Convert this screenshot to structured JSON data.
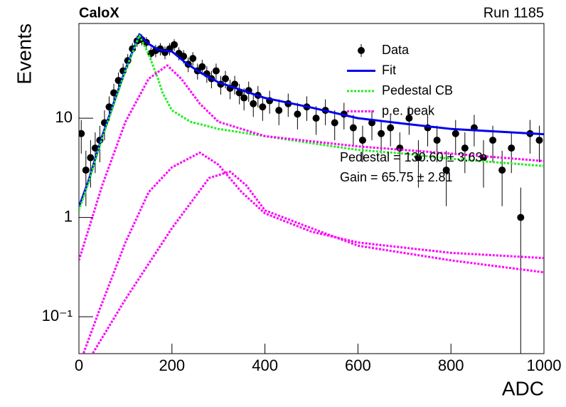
{
  "chart_data": {
    "type": "scatter",
    "title": "CaloX",
    "subtitle": "Run 1185",
    "xlabel": "ADC",
    "ylabel": "Events",
    "xlim": [
      0,
      1000
    ],
    "xticks": [
      0,
      200,
      400,
      600,
      800,
      1000
    ],
    "ylim": [
      0.0425,
      90
    ],
    "yticks": [
      {
        "value": 0.1,
        "label": "10⁻¹"
      },
      1,
      10
    ],
    "log_y": true,
    "legend_position": "upper right",
    "annotations": [
      "Pedestal = 130.60 ± 3.63",
      "Gain = 65.75 ± 2.81"
    ],
    "series": [
      {
        "name": "Data",
        "type": "errorbar",
        "color": "#000000",
        "x": [
          5,
          15,
          25,
          35,
          45,
          55,
          65,
          75,
          85,
          95,
          105,
          115,
          125,
          135,
          145,
          155,
          165,
          175,
          185,
          195,
          205,
          215,
          225,
          235,
          245,
          255,
          265,
          275,
          285,
          295,
          305,
          315,
          325,
          335,
          345,
          355,
          365,
          375,
          385,
          395,
          410,
          430,
          450,
          470,
          490,
          510,
          530,
          550,
          570,
          590,
          610,
          630,
          650,
          670,
          690,
          710,
          730,
          750,
          770,
          790,
          810,
          830,
          850,
          870,
          890,
          910,
          930,
          950,
          970,
          990
        ],
        "values": [
          7,
          3,
          4,
          5,
          6,
          9,
          13,
          18,
          24,
          30,
          38,
          50,
          60,
          62,
          58,
          45,
          48,
          50,
          46,
          50,
          55,
          45,
          42,
          35,
          40,
          30,
          33,
          28,
          25,
          30,
          22,
          25,
          20,
          22,
          18,
          16,
          19,
          14,
          17,
          13,
          15,
          12,
          14,
          11,
          13,
          10,
          12,
          9,
          11,
          8,
          6,
          9,
          7,
          8,
          5,
          10,
          4,
          8,
          6,
          3,
          7,
          5,
          8,
          4,
          6,
          3,
          5,
          1,
          7,
          6
        ],
        "errors": [
          2.6,
          1.7,
          2,
          2.2,
          2.4,
          3,
          3.6,
          4.2,
          4.9,
          5.5,
          6.2,
          7.1,
          7.7,
          7.9,
          7.6,
          6.7,
          6.9,
          7.1,
          6.8,
          7.1,
          7.4,
          6.7,
          6.5,
          5.9,
          6.3,
          5.5,
          5.7,
          5.3,
          5,
          5.5,
          4.7,
          5,
          4.5,
          4.7,
          4.2,
          4,
          4.4,
          3.7,
          4.1,
          3.6,
          3.9,
          3.5,
          3.7,
          3.3,
          3.6,
          3.2,
          3.5,
          3,
          3.3,
          2.8,
          2.4,
          3,
          2.6,
          2.8,
          2.2,
          3.2,
          2,
          2.8,
          2.4,
          1.7,
          2.6,
          2.2,
          2.8,
          2,
          2.4,
          1.7,
          2.2,
          1,
          2.6,
          2.4
        ]
      },
      {
        "name": "Fit",
        "type": "line",
        "color": "#0000ee",
        "x": [
          0,
          20,
          50,
          100,
          130,
          150,
          170,
          200,
          230,
          260,
          300,
          400,
          500,
          600,
          700,
          800,
          1000
        ],
        "values": [
          1.28,
          2.3,
          6.6,
          31,
          70,
          56,
          49,
          47,
          36,
          29,
          23,
          16,
          12.8,
          10,
          8.8,
          7.8,
          6.9
        ]
      },
      {
        "name": "Pedestal CB",
        "type": "dotted",
        "color": "#22ee22",
        "x": [
          0,
          20,
          50,
          100,
          130,
          150,
          170,
          180,
          200,
          240,
          300,
          400,
          500,
          600,
          700,
          800,
          1000
        ],
        "values": [
          1.18,
          2.2,
          6.3,
          30,
          68,
          44,
          25,
          18,
          12,
          9.2,
          7.8,
          6.6,
          5.6,
          4.8,
          4.4,
          3.9,
          3.3
        ]
      },
      {
        "name": "p.e. peak",
        "type": "dotted",
        "color": "#ff00ff",
        "x": [
          0,
          50,
          100,
          150,
          190,
          220,
          260,
          300,
          400,
          600,
          800,
          1000
        ],
        "values": [
          0.37,
          2.1,
          9.2,
          25,
          34,
          25,
          14,
          9.2,
          6.6,
          5.2,
          4.4,
          3.7
        ]
      },
      {
        "type": "dotted",
        "color": "#ff00ff",
        "x": [
          10,
          45,
          100,
          150,
          200,
          260,
          300,
          350,
          400,
          500,
          600,
          800,
          1000
        ],
        "values": [
          0.043,
          0.12,
          0.56,
          1.8,
          3.2,
          4.5,
          3.4,
          1.8,
          1.1,
          0.72,
          0.56,
          0.44,
          0.39
        ]
      },
      {
        "type": "dotted",
        "color": "#ff00ff",
        "x": [
          30,
          100,
          200,
          280,
          325,
          360,
          400,
          500,
          600,
          800,
          1000
        ],
        "values": [
          0.043,
          0.15,
          0.78,
          2.5,
          2.9,
          2.1,
          1.18,
          0.78,
          0.52,
          0.37,
          0.28
        ]
      }
    ]
  }
}
